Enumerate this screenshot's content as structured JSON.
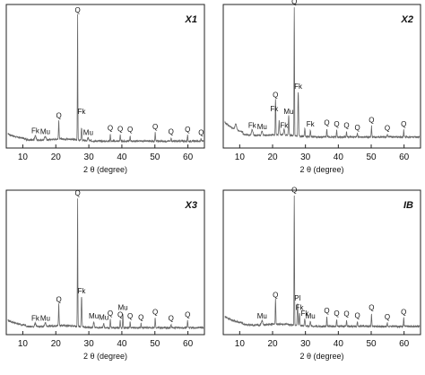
{
  "chart_data": [
    {
      "type": "line",
      "panel_label": "X1",
      "xlabel": "2 θ (degree)",
      "ylabel": "",
      "xlim": [
        5,
        65
      ],
      "xticks": [
        10,
        20,
        30,
        40,
        50,
        60
      ],
      "grid": false,
      "baseline": 0.03,
      "peaks": [
        {
          "x": 13.8,
          "h": 0.03,
          "w": 0.3
        },
        {
          "x": 16.8,
          "h": 0.025,
          "w": 0.3
        },
        {
          "x": 20.9,
          "h": 0.14,
          "w": 0.12
        },
        {
          "x": 26.6,
          "h": 0.9,
          "w": 0.1
        },
        {
          "x": 27.8,
          "h": 0.09,
          "w": 0.15
        },
        {
          "x": 29.8,
          "h": 0.02,
          "w": 0.25
        },
        {
          "x": 36.5,
          "h": 0.05,
          "w": 0.12
        },
        {
          "x": 39.5,
          "h": 0.045,
          "w": 0.12
        },
        {
          "x": 42.5,
          "h": 0.04,
          "w": 0.12
        },
        {
          "x": 50.1,
          "h": 0.06,
          "w": 0.12
        },
        {
          "x": 54.9,
          "h": 0.025,
          "w": 0.12
        },
        {
          "x": 59.9,
          "h": 0.04,
          "w": 0.12
        },
        {
          "x": 64.0,
          "h": 0.02,
          "w": 0.12
        }
      ],
      "annotations": [
        {
          "label": "Fk",
          "x": 13.8,
          "h": 0.03
        },
        {
          "label": "Mu",
          "x": 16.8,
          "h": 0.025
        },
        {
          "label": "Q",
          "x": 20.9,
          "h": 0.14
        },
        {
          "label": "Q",
          "x": 26.6,
          "h": 0.9
        },
        {
          "label": "Fk",
          "x": 27.8,
          "h": 0.17
        },
        {
          "label": "Mu",
          "x": 29.8,
          "h": 0.02
        },
        {
          "label": "Q",
          "x": 36.5,
          "h": 0.05
        },
        {
          "label": "Q",
          "x": 39.5,
          "h": 0.045
        },
        {
          "label": "Q",
          "x": 42.5,
          "h": 0.04
        },
        {
          "label": "Q",
          "x": 50.1,
          "h": 0.06
        },
        {
          "label": "Q",
          "x": 54.9,
          "h": 0.025
        },
        {
          "label": "Q",
          "x": 59.9,
          "h": 0.04
        },
        {
          "label": "Q",
          "x": 64.0,
          "h": 0.02
        }
      ]
    },
    {
      "type": "line",
      "panel_label": "X2",
      "xlabel": "2 θ (degree)",
      "ylabel": "",
      "xlim": [
        5,
        65
      ],
      "xticks": [
        10,
        20,
        30,
        40,
        50,
        60
      ],
      "grid": false,
      "baseline": 0.06,
      "peaks": [
        {
          "x": 8.8,
          "h": 0.04,
          "w": 0.35
        },
        {
          "x": 13.8,
          "h": 0.04,
          "w": 0.3
        },
        {
          "x": 16.8,
          "h": 0.03,
          "w": 0.3
        },
        {
          "x": 20.9,
          "h": 0.26,
          "w": 0.12
        },
        {
          "x": 22.0,
          "h": 0.1,
          "w": 0.15
        },
        {
          "x": 23.5,
          "h": 0.04,
          "w": 0.2
        },
        {
          "x": 24.9,
          "h": 0.14,
          "w": 0.15
        },
        {
          "x": 26.6,
          "h": 0.93,
          "w": 0.1
        },
        {
          "x": 27.8,
          "h": 0.32,
          "w": 0.15
        },
        {
          "x": 29.8,
          "h": 0.06,
          "w": 0.15
        },
        {
          "x": 31.5,
          "h": 0.05,
          "w": 0.15
        },
        {
          "x": 36.5,
          "h": 0.06,
          "w": 0.12
        },
        {
          "x": 39.5,
          "h": 0.05,
          "w": 0.12
        },
        {
          "x": 42.5,
          "h": 0.04,
          "w": 0.12
        },
        {
          "x": 45.8,
          "h": 0.025,
          "w": 0.12
        },
        {
          "x": 50.1,
          "h": 0.08,
          "w": 0.12
        },
        {
          "x": 54.9,
          "h": 0.02,
          "w": 0.12
        },
        {
          "x": 59.9,
          "h": 0.05,
          "w": 0.12
        }
      ],
      "annotations": [
        {
          "label": "Fk",
          "x": 13.8,
          "h": 0.04
        },
        {
          "label": "Mu",
          "x": 16.8,
          "h": 0.03
        },
        {
          "label": "Q",
          "x": 20.9,
          "h": 0.26
        },
        {
          "label": "Fk",
          "x": 20.5,
          "h": 0.16
        },
        {
          "label": "Fk",
          "x": 23.5,
          "h": 0.04
        },
        {
          "label": "Mu",
          "x": 24.9,
          "h": 0.14
        },
        {
          "label": "Q",
          "x": 26.6,
          "h": 0.93
        },
        {
          "label": "Fk",
          "x": 27.8,
          "h": 0.32
        },
        {
          "label": "Fk",
          "x": 31.5,
          "h": 0.05
        },
        {
          "label": "Q",
          "x": 36.5,
          "h": 0.06
        },
        {
          "label": "Q",
          "x": 39.5,
          "h": 0.05
        },
        {
          "label": "Q",
          "x": 42.5,
          "h": 0.04
        },
        {
          "label": "Q",
          "x": 45.8,
          "h": 0.025
        },
        {
          "label": "Q",
          "x": 50.1,
          "h": 0.08
        },
        {
          "label": "Q",
          "x": 54.9,
          "h": 0.02
        },
        {
          "label": "Q",
          "x": 59.9,
          "h": 0.05
        }
      ]
    },
    {
      "type": "line",
      "panel_label": "X3",
      "xlabel": "2 θ (degree)",
      "ylabel": "",
      "xlim": [
        5,
        65
      ],
      "xticks": [
        10,
        20,
        30,
        40,
        50,
        60
      ],
      "grid": false,
      "baseline": 0.03,
      "peaks": [
        {
          "x": 13.8,
          "h": 0.025,
          "w": 0.3
        },
        {
          "x": 16.8,
          "h": 0.025,
          "w": 0.3
        },
        {
          "x": 20.9,
          "h": 0.16,
          "w": 0.12
        },
        {
          "x": 26.6,
          "h": 0.92,
          "w": 0.1
        },
        {
          "x": 27.8,
          "h": 0.22,
          "w": 0.15
        },
        {
          "x": 31.5,
          "h": 0.04,
          "w": 0.2
        },
        {
          "x": 34.5,
          "h": 0.03,
          "w": 0.2
        },
        {
          "x": 36.5,
          "h": 0.06,
          "w": 0.12
        },
        {
          "x": 39.5,
          "h": 0.05,
          "w": 0.12
        },
        {
          "x": 40.3,
          "h": 0.1,
          "w": 0.12
        },
        {
          "x": 42.5,
          "h": 0.04,
          "w": 0.12
        },
        {
          "x": 45.8,
          "h": 0.03,
          "w": 0.12
        },
        {
          "x": 50.1,
          "h": 0.07,
          "w": 0.12
        },
        {
          "x": 54.9,
          "h": 0.025,
          "w": 0.12
        },
        {
          "x": 59.9,
          "h": 0.05,
          "w": 0.12
        }
      ],
      "annotations": [
        {
          "label": "Fk",
          "x": 13.8,
          "h": 0.025
        },
        {
          "label": "Mu",
          "x": 16.8,
          "h": 0.025
        },
        {
          "label": "Q",
          "x": 20.9,
          "h": 0.16
        },
        {
          "label": "Q",
          "x": 26.6,
          "h": 0.92
        },
        {
          "label": "Fk",
          "x": 27.8,
          "h": 0.22
        },
        {
          "label": "Mu",
          "x": 31.5,
          "h": 0.04
        },
        {
          "label": "Mu",
          "x": 34.5,
          "h": 0.03
        },
        {
          "label": "Q",
          "x": 36.5,
          "h": 0.06
        },
        {
          "label": "Q",
          "x": 39.5,
          "h": 0.05
        },
        {
          "label": "Mu",
          "x": 40.3,
          "h": 0.1
        },
        {
          "label": "Q",
          "x": 42.5,
          "h": 0.04
        },
        {
          "label": "Q",
          "x": 45.8,
          "h": 0.03
        },
        {
          "label": "Q",
          "x": 50.1,
          "h": 0.07
        },
        {
          "label": "Q",
          "x": 54.9,
          "h": 0.025
        },
        {
          "label": "Q",
          "x": 59.9,
          "h": 0.05
        }
      ]
    },
    {
      "type": "line",
      "panel_label": "IB",
      "xlabel": "2 θ (degree)",
      "ylabel": "",
      "xlim": [
        5,
        65
      ],
      "xticks": [
        10,
        20,
        30,
        40,
        50,
        60
      ],
      "grid": false,
      "baseline": 0.04,
      "peaks": [
        {
          "x": 16.8,
          "h": 0.03,
          "w": 0.3
        },
        {
          "x": 20.9,
          "h": 0.18,
          "w": 0.12
        },
        {
          "x": 26.6,
          "h": 0.93,
          "w": 0.1
        },
        {
          "x": 27.6,
          "h": 0.16,
          "w": 0.15
        },
        {
          "x": 28.2,
          "h": 0.09,
          "w": 0.15
        },
        {
          "x": 29.8,
          "h": 0.05,
          "w": 0.15
        },
        {
          "x": 31.5,
          "h": 0.03,
          "w": 0.2
        },
        {
          "x": 36.5,
          "h": 0.07,
          "w": 0.12
        },
        {
          "x": 39.5,
          "h": 0.05,
          "w": 0.12
        },
        {
          "x": 42.5,
          "h": 0.045,
          "w": 0.12
        },
        {
          "x": 45.8,
          "h": 0.035,
          "w": 0.12
        },
        {
          "x": 50.1,
          "h": 0.09,
          "w": 0.12
        },
        {
          "x": 54.9,
          "h": 0.025,
          "w": 0.12
        },
        {
          "x": 59.9,
          "h": 0.06,
          "w": 0.12
        }
      ],
      "annotations": [
        {
          "label": "Mu",
          "x": 16.8,
          "h": 0.03
        },
        {
          "label": "Q",
          "x": 20.9,
          "h": 0.18
        },
        {
          "label": "Q",
          "x": 26.6,
          "h": 0.93
        },
        {
          "label": "Pl",
          "x": 27.6,
          "h": 0.16
        },
        {
          "label": "Fk",
          "x": 28.2,
          "h": 0.09
        },
        {
          "label": "Fk",
          "x": 29.8,
          "h": 0.05
        },
        {
          "label": "Mu",
          "x": 31.5,
          "h": 0.03
        },
        {
          "label": "Q",
          "x": 36.5,
          "h": 0.07
        },
        {
          "label": "Q",
          "x": 39.5,
          "h": 0.05
        },
        {
          "label": "Q",
          "x": 42.5,
          "h": 0.045
        },
        {
          "label": "Q",
          "x": 45.8,
          "h": 0.035
        },
        {
          "label": "Q",
          "x": 50.1,
          "h": 0.09
        },
        {
          "label": "Q",
          "x": 54.9,
          "h": 0.025
        },
        {
          "label": "Q",
          "x": 59.9,
          "h": 0.06
        }
      ]
    }
  ]
}
